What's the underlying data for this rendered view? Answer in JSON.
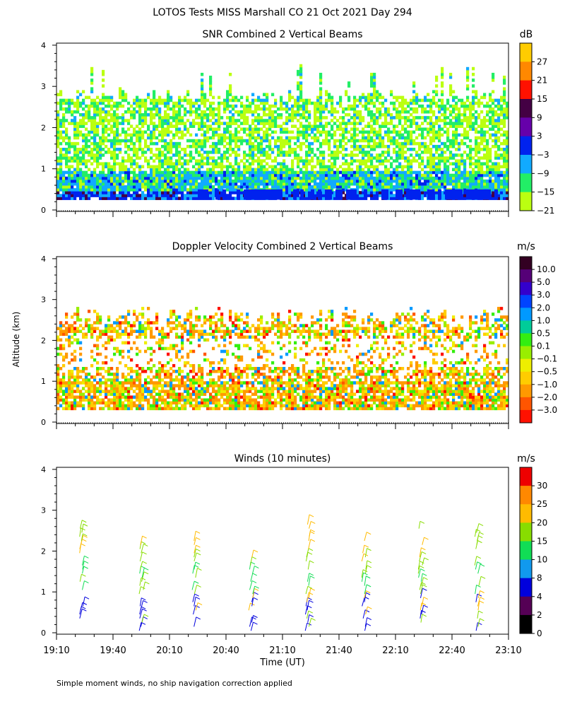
{
  "header": {
    "main_title": "LOTOS Tests MISS Marshall CO  21 Oct 2021 Day 294",
    "y_axis_label": "Altitude (km)",
    "x_axis_label": "Time (UT)",
    "footnote": "Simple moment winds, no ship navigation correction applied"
  },
  "x_ticks": [
    "19:10",
    "19:40",
    "20:10",
    "20:40",
    "21:10",
    "21:40",
    "22:10",
    "22:40",
    "23:10"
  ],
  "y_ticks": [
    "0",
    "1",
    "2",
    "3",
    "4"
  ],
  "chart_data": [
    {
      "type": "heatmap",
      "title": "SNR Combined 2 Vertical Beams",
      "colorbar_unit": "dB",
      "colorbar_labels": [
        "27",
        "21",
        "15",
        "9",
        "3",
        "−3",
        "−9",
        "−15",
        "−21"
      ],
      "colorbar_colors": [
        "#ffcc00",
        "#ff8800",
        "#ff1100",
        "#440044",
        "#6600aa",
        "#0022ee",
        "#11aaff",
        "#22ee66",
        "#bbff11"
      ],
      "xlim": [
        "19:10",
        "23:10"
      ],
      "ylim": [
        0,
        4
      ],
      "xlabel": "",
      "ylabel": "Altitude (km)"
    },
    {
      "type": "heatmap",
      "title": "Doppler Velocity Combined 2 Vertical Beams",
      "colorbar_unit": "m/s",
      "colorbar_labels": [
        "10.0",
        "5.0",
        "3.0",
        "2.0",
        "1.0",
        "0.5",
        "0.1",
        "−0.1",
        "−0.5",
        "−1.0",
        "−2.0",
        "−3.0"
      ],
      "colorbar_colors": [
        "#330022",
        "#550077",
        "#3300cc",
        "#0044ff",
        "#0099ff",
        "#00cc99",
        "#33ee11",
        "#99ee00",
        "#eeee00",
        "#ffcc00",
        "#ff9900",
        "#ff5500",
        "#ff1100"
      ],
      "xlim": [
        "19:10",
        "23:10"
      ],
      "ylim": [
        0,
        4
      ],
      "xlabel": "",
      "ylabel": "Altitude (km)"
    },
    {
      "type": "scatter",
      "title": "Winds (10 minutes)",
      "colorbar_unit": "m/s",
      "colorbar_labels": [
        "30",
        "25",
        "20",
        "15",
        "10",
        "8",
        "4",
        "2",
        "0"
      ],
      "colorbar_colors": [
        "#ee0000",
        "#ff8800",
        "#ffbb00",
        "#88dd00",
        "#11dd55",
        "#1199ee",
        "#0000dd",
        "#550055",
        "#000000"
      ],
      "xlim": [
        "19:10",
        "23:10"
      ],
      "ylim": [
        0,
        4
      ],
      "xlabel": "Time (UT)",
      "ylabel": "Altitude (km)"
    }
  ]
}
